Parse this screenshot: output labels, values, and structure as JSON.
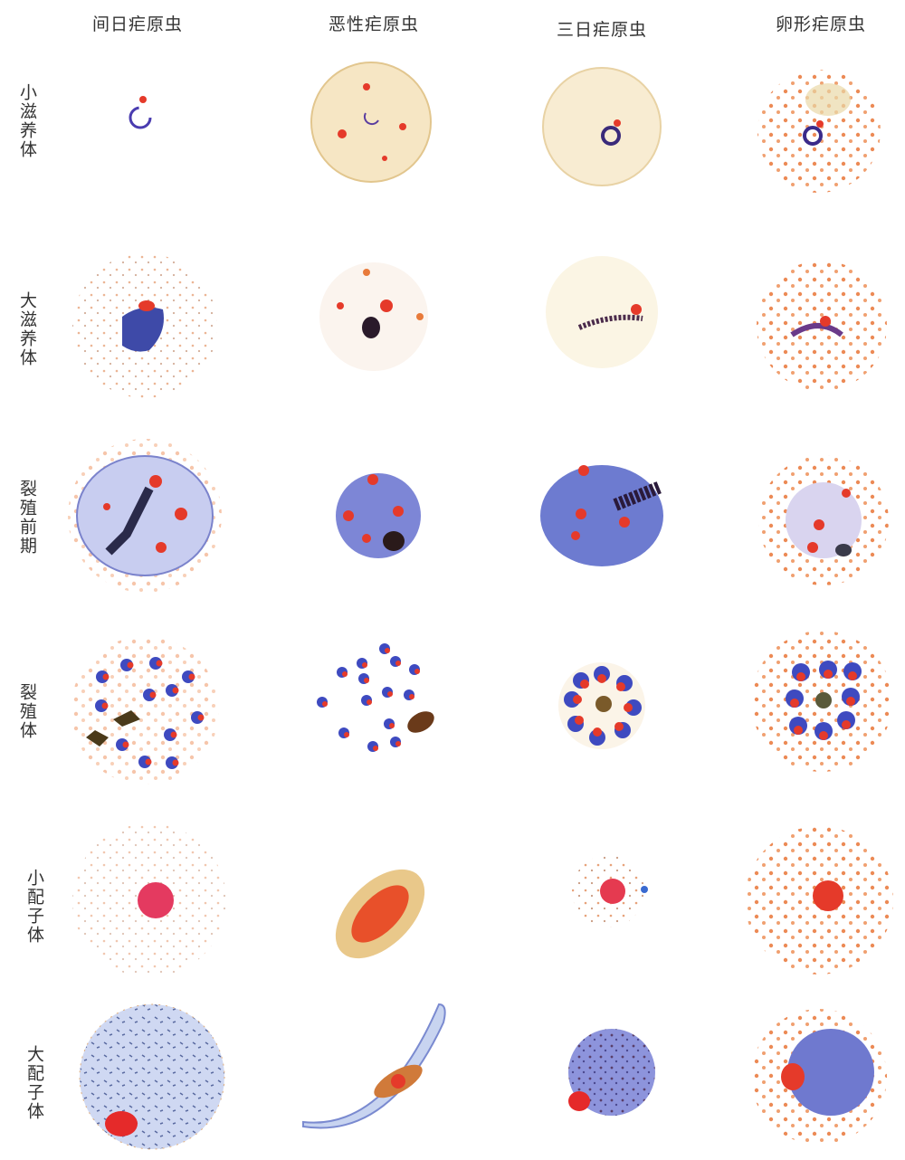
{
  "columns": [
    "间日疟原虫",
    "恶性疟原虫",
    "三日疟原虫",
    "卵形疟原虫"
  ],
  "rows": [
    "小滋养体",
    "大滋养体",
    "裂殖前期",
    "裂殖体",
    "小配子体",
    "大配子体"
  ]
}
